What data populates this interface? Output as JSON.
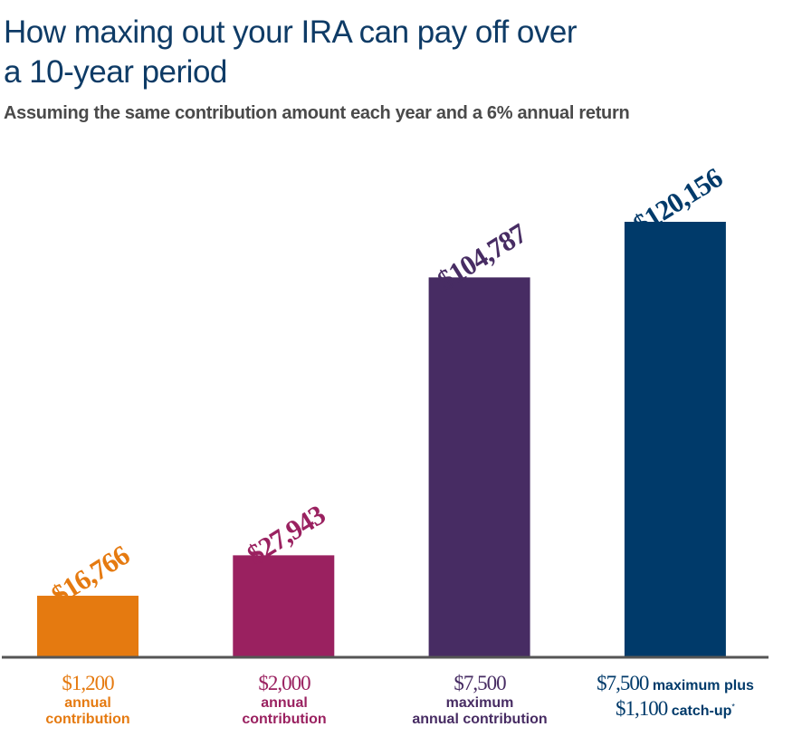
{
  "chart_data": {
    "type": "bar",
    "title": "How maxing out your IRA can pay off over a 10-year period",
    "subtitle": "Assuming the same contribution amount each year and a 6% annual return",
    "title_lines": [
      "How maxing out your IRA can pay off over",
      "a 10-year period"
    ],
    "categories": [
      {
        "amount": "$1,200",
        "desc": "annual contribution",
        "desc_lines": [
          "annual",
          "contribution"
        ]
      },
      {
        "amount": "$2,000",
        "desc": "annual contribution",
        "desc_lines": [
          "annual",
          "contribution"
        ]
      },
      {
        "amount": "$7,500",
        "desc": "maximum annual contribution",
        "desc_lines": [
          "maximum",
          "annual contribution"
        ]
      },
      {
        "amount": "$7,500",
        "desc": "maximum plus",
        "amount2": "$1,100",
        "desc2": "catch-up",
        "footnote": "*"
      }
    ],
    "values": [
      16766,
      27943,
      104787,
      120156
    ],
    "data_labels": [
      "$16,766",
      "$27,943",
      "$104,787",
      "$120,156"
    ],
    "colors": [
      "#e57a10",
      "#9a2160",
      "#472c63",
      "#003a6a"
    ],
    "ylim": [
      0,
      120156
    ],
    "axis_color": "#555555",
    "grid": false,
    "legend": "none"
  }
}
